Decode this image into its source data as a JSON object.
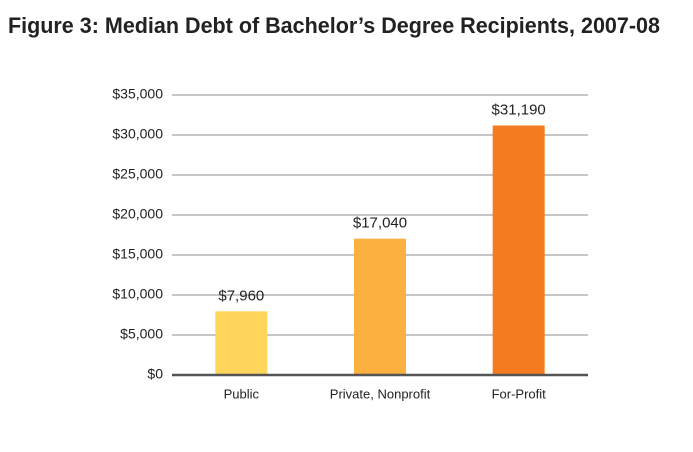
{
  "chart_data": {
    "type": "bar",
    "title": "Figure 3: Median Debt of Bachelor’s Degree Recipients, 2007-08",
    "categories": [
      "Public",
      "Private, Nonprofit",
      "For-Profit"
    ],
    "values": [
      7960,
      17040,
      31190
    ],
    "value_labels": [
      "$7,960",
      "$17,040",
      "$31,190"
    ],
    "colors": [
      "#ffd55c",
      "#fbb040",
      "#f47b20"
    ],
    "ylim": [
      0,
      35000
    ],
    "yticks": [
      {
        "value": 0,
        "label": "$0"
      },
      {
        "value": 5000,
        "label": "$5,000"
      },
      {
        "value": 10000,
        "label": "$10,000"
      },
      {
        "value": 15000,
        "label": "$15,000"
      },
      {
        "value": 20000,
        "label": "$20,000"
      },
      {
        "value": 25000,
        "label": "$25,000"
      },
      {
        "value": 30000,
        "label": "$30,000"
      },
      {
        "value": 35000,
        "label": "$35,000"
      }
    ],
    "grid": true
  }
}
